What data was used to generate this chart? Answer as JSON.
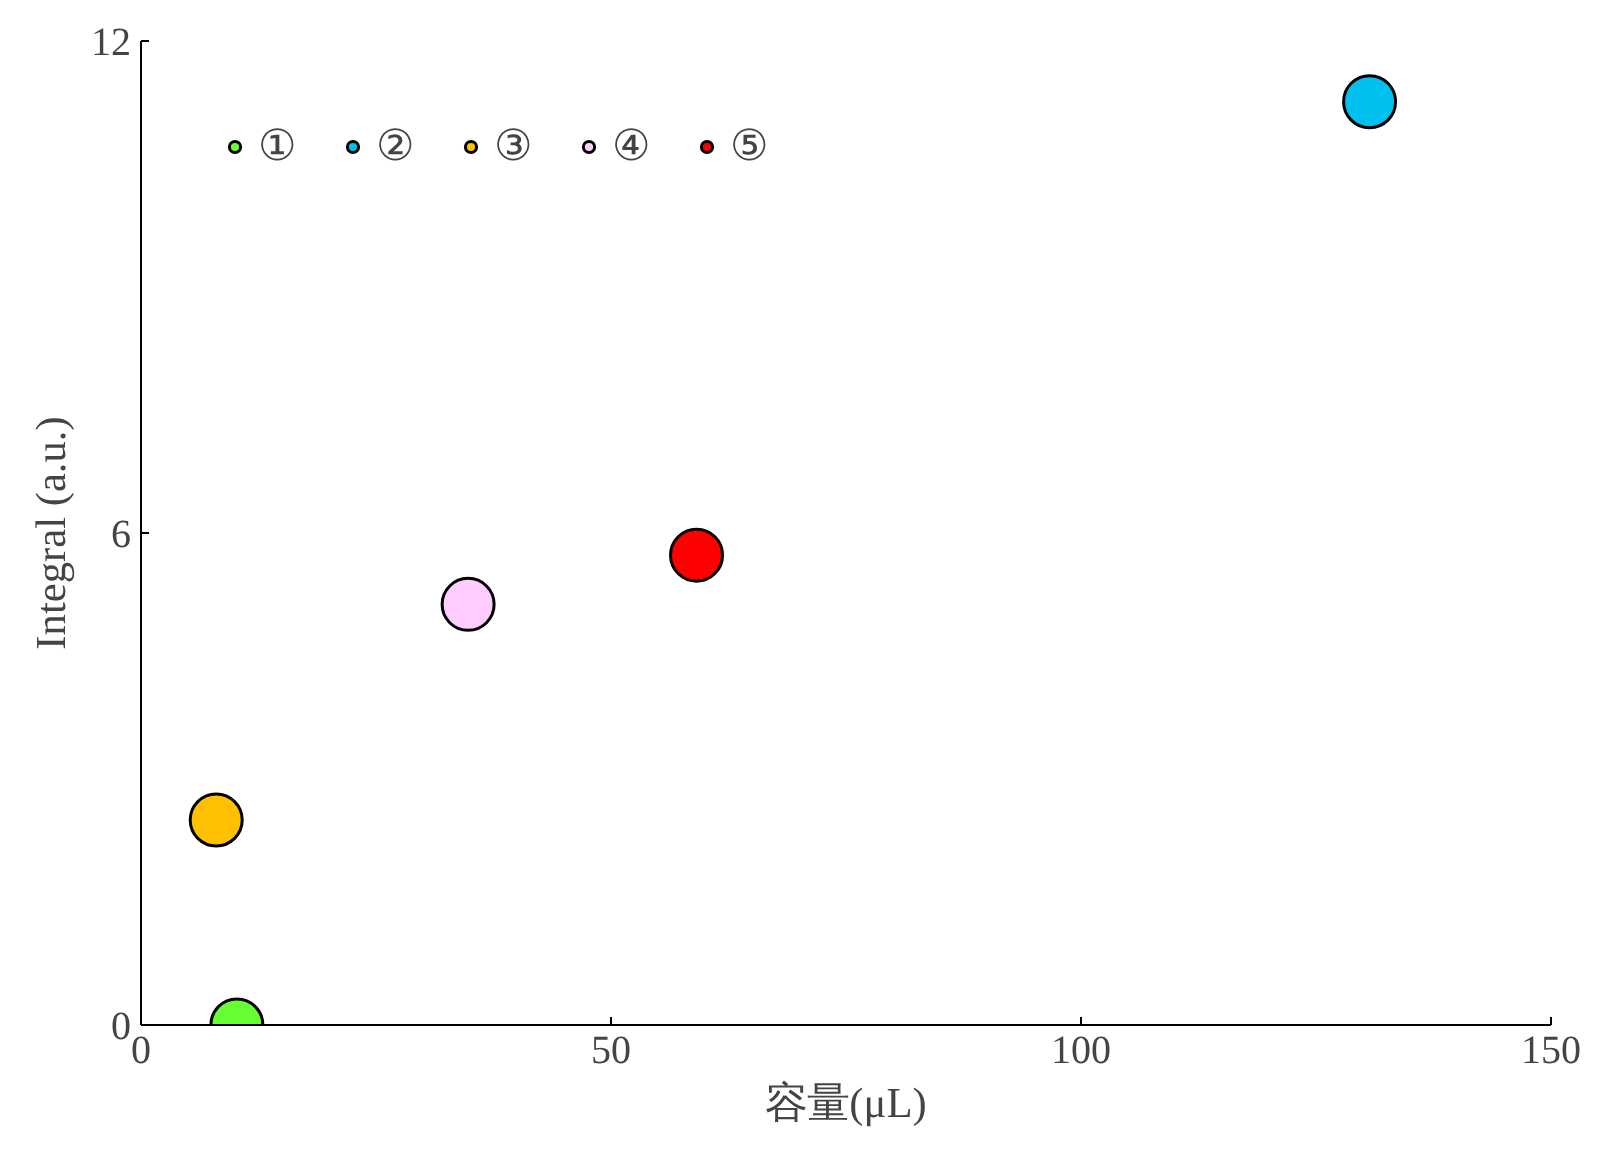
{
  "chart_data": {
    "type": "scatter",
    "xlabel": "容量(μL)",
    "ylabel": "Integral (a.u.)",
    "xlim": [
      0,
      150
    ],
    "xticks": [
      0,
      50,
      100,
      150
    ],
    "ylim": [
      0,
      12
    ],
    "yticks": [
      0,
      6,
      12
    ],
    "grid": false,
    "legend": "top left",
    "marker": "circle",
    "series": [
      {
        "name": "①",
        "color": "#66ff33",
        "x": [
          10.2
        ],
        "values": [
          0.0
        ]
      },
      {
        "name": "②",
        "color": "#00c0f0",
        "x": [
          130.7
        ],
        "values": [
          11.26
        ]
      },
      {
        "name": "③",
        "color": "#ffc000",
        "x": [
          8.0
        ],
        "values": [
          2.5
        ]
      },
      {
        "name": "④",
        "color": "#ffccff",
        "x": [
          34.8
        ],
        "values": [
          5.13
        ]
      },
      {
        "name": "⑤",
        "color": "#ff0000",
        "x": [
          59.1
        ],
        "values": [
          5.73
        ]
      }
    ]
  }
}
